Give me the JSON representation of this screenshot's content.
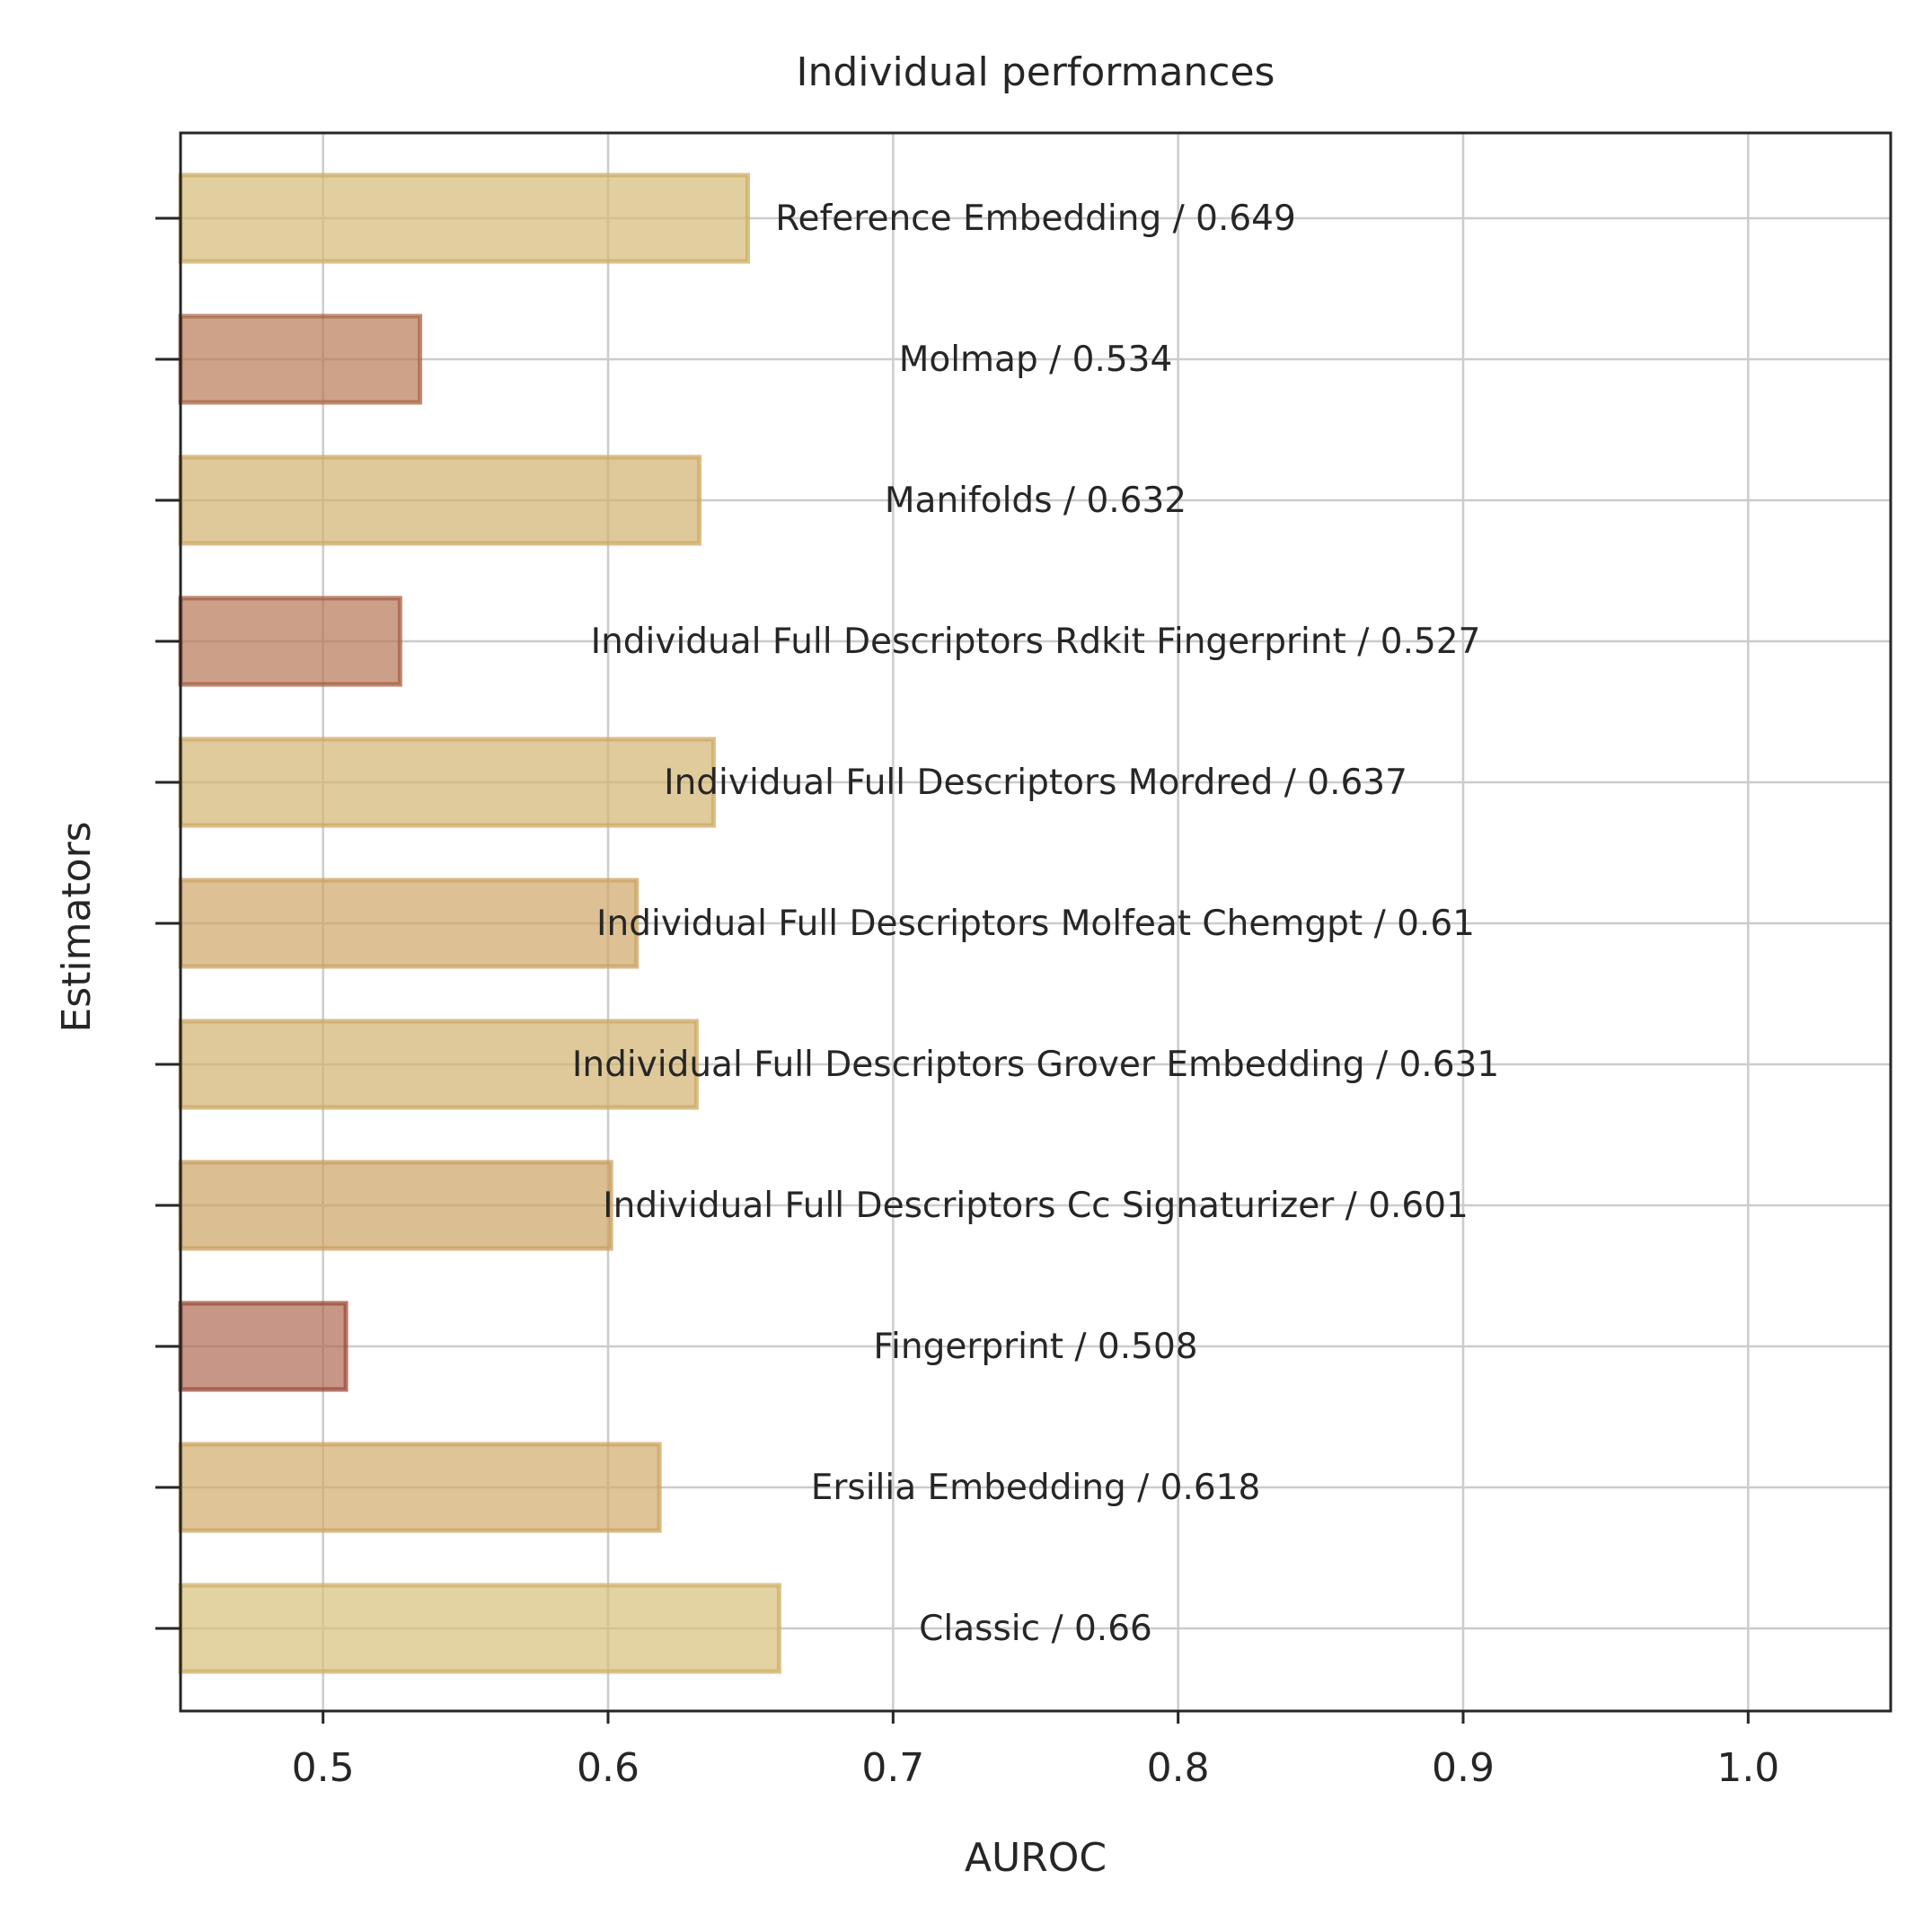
{
  "chart_data": {
    "type": "bar",
    "orientation": "horizontal",
    "title": "Individual performances",
    "xlabel": "AUROC",
    "ylabel": "Estimators",
    "xlim": [
      0.45,
      1.05
    ],
    "xticks": [
      0.5,
      0.6,
      0.7,
      0.8,
      0.9,
      1.0
    ],
    "xtick_labels": [
      "0.5",
      "0.6",
      "0.7",
      "0.8",
      "0.9",
      "1.0"
    ],
    "grid": true,
    "categories": [
      "Reference Embedding",
      "Molmap",
      "Manifolds",
      "Individual Full Descriptors Rdkit Fingerprint",
      "Individual Full Descriptors Mordred",
      "Individual Full Descriptors Molfeat Chemgpt",
      "Individual Full Descriptors Grover Embedding",
      "Individual Full Descriptors Cc Signaturizer",
      "Fingerprint",
      "Ersilia Embedding",
      "Classic"
    ],
    "values": [
      0.649,
      0.534,
      0.632,
      0.527,
      0.637,
      0.61,
      0.631,
      0.601,
      0.508,
      0.618,
      0.66
    ],
    "bar_labels": [
      "Reference Embedding / 0.649",
      "Molmap / 0.534",
      "Manifolds / 0.632",
      "Individual Full Descriptors Rdkit Fingerprint / 0.527",
      "Individual Full Descriptors Mordred / 0.637",
      "Individual Full Descriptors Molfeat Chemgpt / 0.61",
      "Individual Full Descriptors Grover Embedding / 0.631",
      "Individual Full Descriptors Cc Signaturizer / 0.601",
      "Fingerprint / 0.508",
      "Ersilia Embedding / 0.618",
      "Classic / 0.66"
    ],
    "colors": {
      "low": "#b06a53",
      "mid": "#c99a5e",
      "high": "#d8c07a",
      "edge_low": "#9a4a3a",
      "edge_high": "#cfb066"
    }
  }
}
